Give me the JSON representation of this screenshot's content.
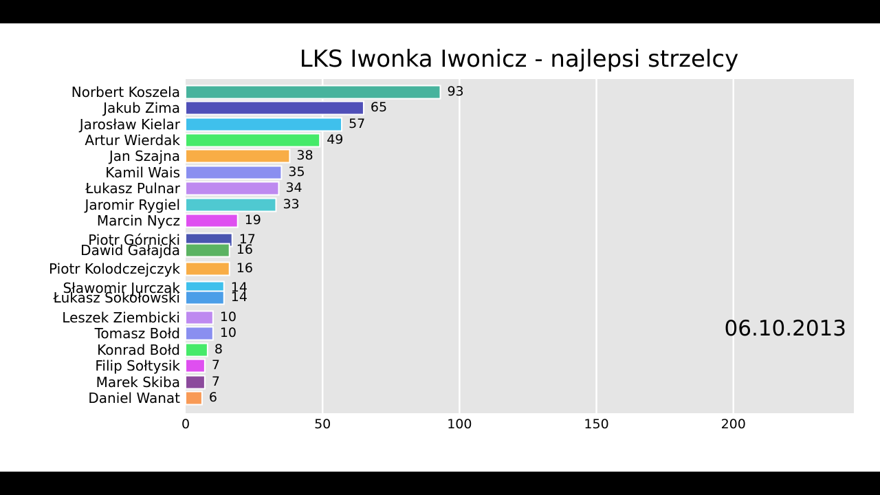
{
  "chart_data": {
    "type": "bar",
    "orientation": "horizontal",
    "title": "LKS Iwonka Iwonicz - najlepsi strzelcy",
    "date": "06.10.2013",
    "xlim": [
      0,
      244
    ],
    "xticks": [
      0,
      50,
      100,
      150,
      200
    ],
    "grid": true,
    "bars": [
      {
        "label": "Norbert Koszela",
        "value": 93,
        "color": "#47b39d"
      },
      {
        "label": "Jakub Zima",
        "value": 65,
        "color": "#4f4fb8"
      },
      {
        "label": "Jarosław Kielar",
        "value": 57,
        "color": "#3fc0ec"
      },
      {
        "label": "Artur Wierdak",
        "value": 49,
        "color": "#46ea69"
      },
      {
        "label": "Jan Szajna",
        "value": 38,
        "color": "#f8ad46"
      },
      {
        "label": "Kamil Wais",
        "value": 35,
        "color": "#8a8ff0"
      },
      {
        "label": "Łukasz Pulnar",
        "value": 34,
        "color": "#be8af0"
      },
      {
        "label": "Jaromir Rygiel",
        "value": 33,
        "color": "#4fc9d1"
      },
      {
        "label": "Marcin Nycz",
        "value": 19,
        "color": "#df4ff0"
      },
      {
        "label": "Piotr Górnicki",
        "value": 17,
        "color": "#4a55b0"
      },
      {
        "label": "Dawid Gałajda",
        "value": 16,
        "color": "#5bb362"
      },
      {
        "label": "Piotr Kolodczejczyk",
        "value": 16,
        "color": "#f8ad46"
      },
      {
        "label": "Sławomir Jurczak",
        "value": 14,
        "color": "#3fc0ec"
      },
      {
        "label": "Łukasz Sokołowski",
        "value": 14,
        "color": "#4b9ee8"
      },
      {
        "label": "Leszek Ziembicki",
        "value": 10,
        "color": "#be8af0"
      },
      {
        "label": "Tomasz Bołd",
        "value": 10,
        "color": "#8a8ff0"
      },
      {
        "label": "Konrad Bołd",
        "value": 8,
        "color": "#46ea69"
      },
      {
        "label": "Filip Sołtysik",
        "value": 7,
        "color": "#df4ff0"
      },
      {
        "label": "Marek Skiba",
        "value": 7,
        "color": "#8c4a9c"
      },
      {
        "label": "Daniel Wanat",
        "value": 6,
        "color": "#f89a56"
      }
    ]
  }
}
